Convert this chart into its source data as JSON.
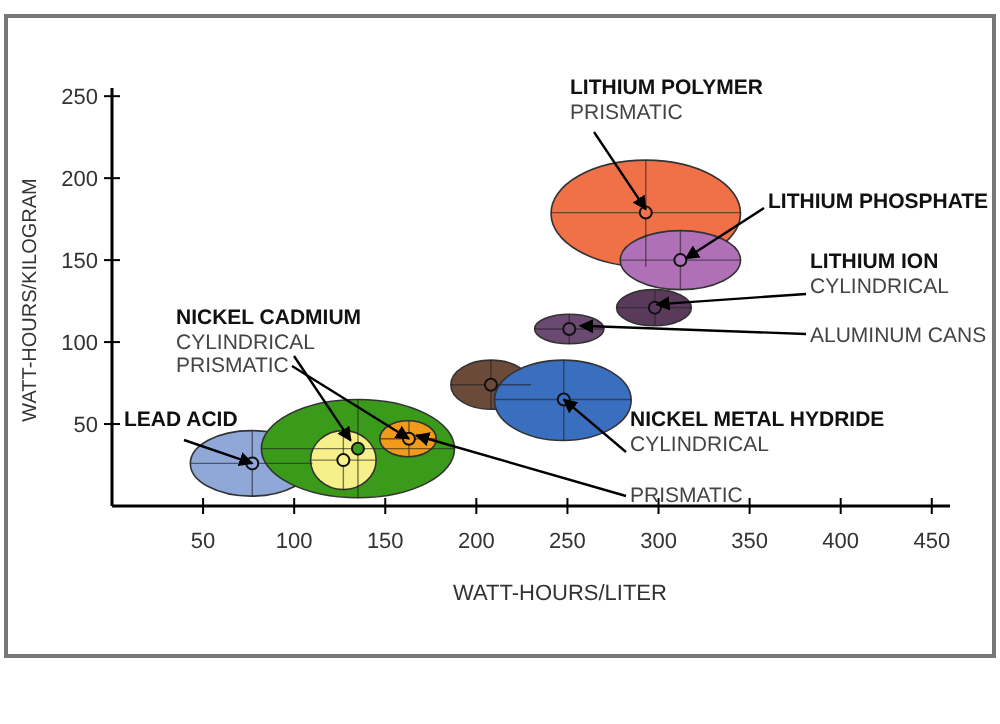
{
  "chart_data": {
    "type": "scatter",
    "xlabel": "WATT-HOURS/LITER",
    "ylabel": "WATT-HOURS/KILOGRAM",
    "xlim": [
      0,
      460
    ],
    "ylim": [
      0,
      255
    ],
    "xticks": [
      50,
      100,
      150,
      200,
      250,
      300,
      350,
      400,
      450
    ],
    "yticks": [
      50,
      100,
      150,
      200,
      250
    ],
    "grid": false,
    "series": [
      {
        "color": "#8fa8d8",
        "x": [
          77
        ],
        "values": [
          26
        ],
        "xerrors": [
          [
            43,
            110
          ]
        ],
        "errors": [
          [
            6,
            46
          ]
        ]
      },
      {
        "color": "#3a9a1a",
        "x": [
          135
        ],
        "values": [
          35
        ],
        "xerrors": [
          [
            82,
            188
          ]
        ],
        "errors": [
          [
            5,
            65
          ]
        ]
      },
      {
        "color": "#f7f08a",
        "x": [
          127
        ],
        "values": [
          28
        ],
        "xerrors": [
          [
            109,
            145
          ]
        ],
        "errors": [
          [
            10,
            46
          ]
        ]
      },
      {
        "color": "#f29a1a",
        "x": [
          163
        ],
        "values": [
          41
        ],
        "xerrors": [
          [
            147,
            178
          ]
        ],
        "errors": [
          [
            30,
            52
          ]
        ]
      },
      {
        "color": "#6b4a3a",
        "x": [
          208
        ],
        "values": [
          74
        ],
        "xerrors": [
          [
            186,
            230
          ]
        ],
        "errors": [
          [
            59,
            89
          ]
        ]
      },
      {
        "color": "#3a6fc0",
        "x": [
          248
        ],
        "values": [
          65
        ],
        "xerrors": [
          [
            210,
            285
          ]
        ],
        "errors": [
          [
            40,
            89
          ]
        ]
      },
      {
        "color": "#6a4a70",
        "x": [
          251
        ],
        "values": [
          108
        ],
        "xerrors": [
          [
            232,
            270
          ]
        ],
        "errors": [
          [
            99,
            117
          ]
        ]
      },
      {
        "color": "#5a3a5a",
        "x": [
          298
        ],
        "values": [
          121
        ],
        "xerrors": [
          [
            277,
            318
          ]
        ],
        "errors": [
          [
            110,
            132
          ]
        ]
      },
      {
        "color": "#f07048",
        "x": [
          293
        ],
        "values": [
          179
        ],
        "xerrors": [
          [
            241,
            345
          ]
        ],
        "errors": [
          [
            146,
            211
          ]
        ]
      },
      {
        "color": "#b070b8",
        "x": [
          312
        ],
        "values": [
          150
        ],
        "xerrors": [
          [
            279,
            345
          ]
        ],
        "errors": [
          [
            132,
            168
          ]
        ]
      }
    ],
    "annotations": [
      {
        "text": "LITHIUM POLYMER\nPRISMATIC",
        "x": 293,
        "y": 181
      },
      {
        "text": "LITHIUM PHOSPHATE",
        "x": 315,
        "y": 151
      },
      {
        "text": "LITHIUM ION\nCYLINDRICAL",
        "x": 299,
        "y": 123
      },
      {
        "text": "ALUMINUM CANS",
        "x": 257,
        "y": 110
      },
      {
        "text": "NICKEL CADMIUM\nCYLINDRICAL",
        "x": 131,
        "y": 40
      },
      {
        "text": "PRISMATIC",
        "x": 163,
        "y": 41
      },
      {
        "text": "LEAD ACID",
        "x": 77,
        "y": 26
      },
      {
        "text": "NICKEL METAL HYDRIDE\nCYLINDRICAL",
        "x": 248,
        "y": 65
      },
      {
        "text": "PRISMATIC",
        "x": 167,
        "y": 43
      }
    ]
  }
}
